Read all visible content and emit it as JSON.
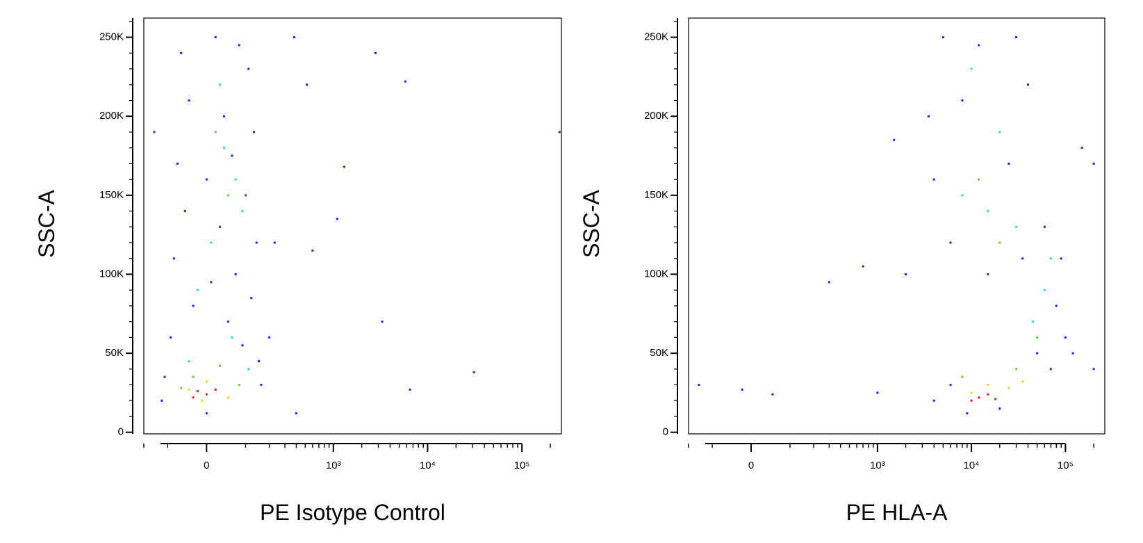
{
  "chart_data": [
    {
      "type": "scatter",
      "xlabel": "PE Isotype Control",
      "ylabel": "SSC-A",
      "xscale": "biexponential",
      "xlim": [
        -200,
        262144
      ],
      "ylim": [
        -1000,
        262144
      ],
      "xticks": [
        0,
        {
          "value": 1000,
          "label": "10³"
        },
        {
          "value": 10000,
          "label": "10⁴"
        },
        {
          "value": 100000,
          "label": "10⁵"
        }
      ],
      "xminorticks": [
        -200,
        -100,
        100,
        200,
        300,
        400,
        500,
        600,
        700,
        800,
        900,
        2000,
        3000,
        4000,
        5000,
        6000,
        7000,
        8000,
        9000,
        20000,
        30000,
        40000,
        50000,
        60000,
        70000,
        80000,
        90000,
        200000
      ],
      "yticks": [
        0,
        {
          "value": 50000,
          "label": "50K"
        },
        {
          "value": 100000,
          "label": "100K"
        },
        {
          "value": 150000,
          "label": "150K"
        },
        {
          "value": 200000,
          "label": "200K"
        },
        {
          "value": 250000,
          "label": "250K"
        }
      ],
      "yminorticks": [
        10000,
        20000,
        30000,
        40000,
        60000,
        70000,
        80000,
        90000,
        110000,
        120000,
        130000,
        140000,
        160000,
        170000,
        180000,
        190000,
        210000,
        220000,
        230000,
        240000,
        260000
      ],
      "series": [
        {
          "color": "#1f1fff",
          "x": [
            -60,
            20,
            80,
            110,
            -40,
            40,
            130,
            -70,
            60,
            0,
            100,
            -50,
            30,
            140,
            -80,
            70,
            10,
            120,
            -30,
            50,
            -90,
            90,
            150,
            -110,
            160,
            -120,
            0,
            200,
            230,
            -150,
            380,
            520,
            3300,
            31000,
            1300,
            5800,
            6500,
            400,
            250000,
            1100,
            600,
            2800
          ],
          "values": [
            240000,
            250000,
            245000,
            230000,
            210000,
            200000,
            190000,
            170000,
            175000,
            160000,
            150000,
            140000,
            130000,
            120000,
            110000,
            100000,
            95000,
            85000,
            80000,
            70000,
            60000,
            55000,
            45000,
            35000,
            30000,
            20000,
            12000,
            60000,
            120000,
            190000,
            250000,
            220000,
            70000,
            38000,
            168000,
            222000,
            27000,
            12000,
            190000,
            135000,
            115000,
            240000
          ]
        },
        {
          "color": "#22d8e8",
          "x": [
            30,
            70,
            10,
            90,
            -20,
            60,
            40,
            -40,
            110
          ],
          "values": [
            220000,
            160000,
            120000,
            140000,
            90000,
            60000,
            180000,
            45000,
            40000
          ]
        },
        {
          "color": "#5ccf3a",
          "x": [
            50,
            20,
            -30,
            80,
            -60,
            30
          ],
          "values": [
            150000,
            190000,
            35000,
            30000,
            28000,
            42000
          ]
        },
        {
          "color": "#f2d21b",
          "x": [
            0,
            -40,
            50,
            -10
          ],
          "values": [
            32000,
            27000,
            22000,
            20000
          ]
        },
        {
          "color": "#e8210f",
          "x": [
            -20,
            0,
            20,
            -30
          ],
          "values": [
            26000,
            24000,
            27000,
            22000
          ]
        }
      ]
    },
    {
      "type": "scatter",
      "xlabel": "PE HLA-A",
      "ylabel": "SSC-A",
      "xscale": "biexponential",
      "xlim": [
        -200,
        262144
      ],
      "ylim": [
        -1000,
        262144
      ],
      "xticks": [
        0,
        {
          "value": 1000,
          "label": "10³"
        },
        {
          "value": 10000,
          "label": "10⁴"
        },
        {
          "value": 100000,
          "label": "10⁵"
        }
      ],
      "xminorticks": [
        -200,
        -100,
        100,
        200,
        300,
        400,
        500,
        600,
        700,
        800,
        900,
        2000,
        3000,
        4000,
        5000,
        6000,
        7000,
        8000,
        9000,
        20000,
        30000,
        40000,
        50000,
        60000,
        70000,
        80000,
        90000,
        200000
      ],
      "yticks": [
        0,
        {
          "value": 50000,
          "label": "50K"
        },
        {
          "value": 100000,
          "label": "100K"
        },
        {
          "value": 150000,
          "label": "150K"
        },
        {
          "value": 200000,
          "label": "200K"
        },
        {
          "value": 250000,
          "label": "250K"
        }
      ],
      "yminorticks": [
        10000,
        20000,
        30000,
        40000,
        60000,
        70000,
        80000,
        90000,
        110000,
        120000,
        130000,
        140000,
        160000,
        170000,
        180000,
        190000,
        210000,
        220000,
        230000,
        240000,
        260000
      ],
      "series": [
        {
          "color": "#1f1fff",
          "x": [
            5000,
            12000,
            30000,
            3500,
            8000,
            40000,
            4000,
            25000,
            6000,
            35000,
            15000,
            60000,
            90000,
            80000,
            100000,
            50000,
            6000,
            4000,
            70000,
            20000,
            9000,
            120000,
            150000,
            200000,
            300,
            700,
            -150,
            50,
            1000,
            -20,
            2000,
            1500,
            200000
          ],
          "values": [
            250000,
            245000,
            250000,
            200000,
            210000,
            220000,
            160000,
            170000,
            120000,
            110000,
            100000,
            130000,
            110000,
            80000,
            60000,
            50000,
            30000,
            20000,
            40000,
            15000,
            12000,
            50000,
            180000,
            170000,
            95000,
            105000,
            30000,
            24000,
            25000,
            27000,
            100000,
            185000,
            40000
          ]
        },
        {
          "color": "#22d8e8",
          "x": [
            10000,
            20000,
            8000,
            15000,
            30000,
            60000,
            45000,
            70000
          ],
          "values": [
            230000,
            190000,
            150000,
            140000,
            130000,
            90000,
            70000,
            110000
          ]
        },
        {
          "color": "#5ccf3a",
          "x": [
            12000,
            20000,
            50000,
            30000,
            8000
          ],
          "values": [
            160000,
            120000,
            60000,
            40000,
            35000
          ]
        },
        {
          "color": "#f2d21b",
          "x": [
            15000,
            25000,
            10000,
            35000
          ],
          "values": [
            30000,
            28000,
            25000,
            32000
          ]
        },
        {
          "color": "#e8210f",
          "x": [
            12000,
            15000,
            18000,
            10000
          ],
          "values": [
            22000,
            24000,
            21000,
            20000
          ]
        }
      ]
    }
  ]
}
